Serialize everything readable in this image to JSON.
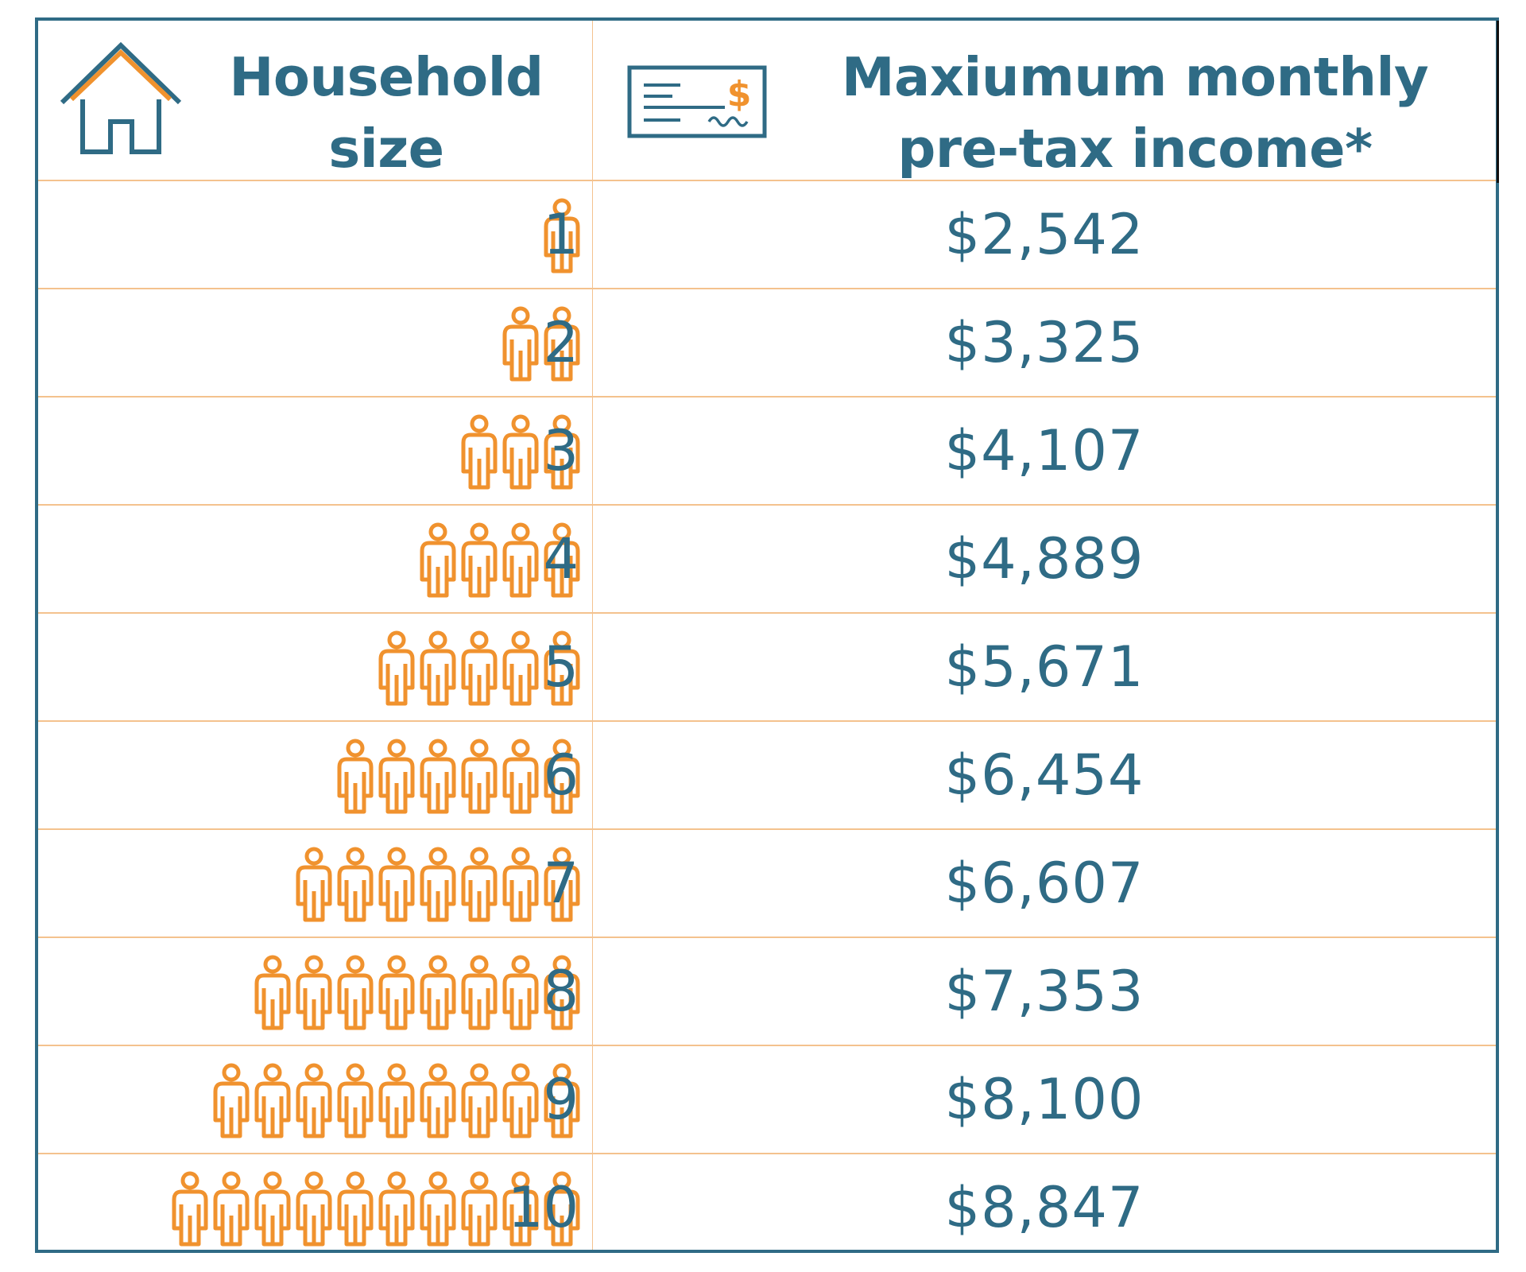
{
  "header": {
    "household_line1": "Household",
    "household_line2": "size",
    "income_line1": "Maxiumum monthly",
    "income_line2": "pre-tax income*",
    "icons": [
      "house-icon",
      "check-icon"
    ]
  },
  "colors": {
    "primary": "#2f6b85",
    "accent": "#f0922e",
    "gridline": "#f4c28e"
  },
  "rows": [
    {
      "size": "1",
      "people": 1,
      "income": "$2,542"
    },
    {
      "size": "2",
      "people": 2,
      "income": "$3,325"
    },
    {
      "size": "3",
      "people": 3,
      "income": "$4,107"
    },
    {
      "size": "4",
      "people": 4,
      "income": "$4,889"
    },
    {
      "size": "5",
      "people": 5,
      "income": "$5,671"
    },
    {
      "size": "6",
      "people": 6,
      "income": "$6,454"
    },
    {
      "size": "7",
      "people": 7,
      "income": "$6,607"
    },
    {
      "size": "8",
      "people": 8,
      "income": "$7,353"
    },
    {
      "size": "9",
      "people": 9,
      "income": "$8,100"
    },
    {
      "size": "10",
      "people": 10,
      "income": "$8,847"
    }
  ]
}
